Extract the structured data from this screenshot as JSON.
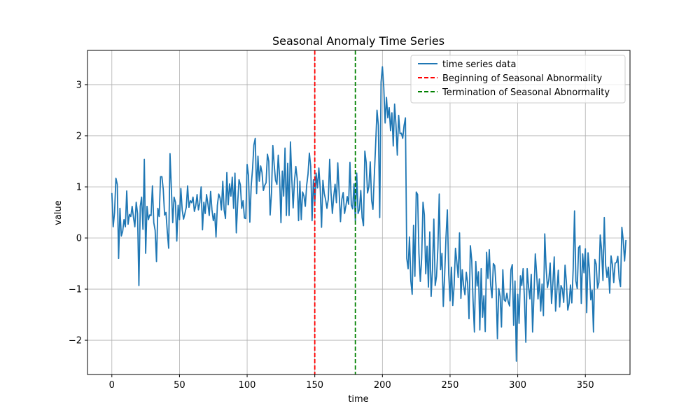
{
  "chart_data": {
    "type": "line",
    "title": "Seasonal Anomaly Time Series",
    "xlabel": "time",
    "ylabel": "value",
    "xlim": [
      -18,
      383
    ],
    "ylim": [
      -2.67,
      3.67
    ],
    "grid": true,
    "legend_position": "top-right",
    "x_ticks": [
      0,
      50,
      100,
      150,
      200,
      250,
      300,
      350
    ],
    "y_ticks": [
      -2,
      -1,
      0,
      1,
      2,
      3
    ],
    "series": [
      {
        "name": "time series data",
        "color": "#1f77b4",
        "x_start": 0,
        "x_step": 1,
        "values": [
          0.88,
          0.22,
          0.5,
          1.17,
          1.05,
          -0.4,
          0.58,
          0.04,
          0.13,
          0.36,
          0.22,
          0.92,
          0.27,
          0.46,
          0.42,
          0.62,
          0.4,
          0.22,
          0.7,
          0.48,
          -0.93,
          0.62,
          0.8,
          0.17,
          1.54,
          -0.3,
          0.62,
          0.36,
          0.45,
          0.44,
          1.02,
          0.3,
          0.15,
          -0.46,
          0.58,
          0.42,
          1.2,
          1.2,
          0.95,
          0.45,
          0.5,
          0.12,
          -0.2,
          1.65,
          0.96,
          0.3,
          0.8,
          0.7,
          -0.06,
          0.64,
          0.36,
          0.97,
          0.55,
          0.37,
          0.48,
          0.6,
          1.02,
          0.6,
          0.73,
          0.69,
          0.8,
          0.52,
          0.63,
          0.85,
          0.55,
          0.69,
          1.0,
          0.16,
          0.7,
          0.48,
          0.85,
          0.67,
          0.44,
          0.91,
          0.55,
          0.34,
          0.48,
          0.02,
          0.64,
          0.86,
          0.78,
          0.55,
          1.11,
          0.55,
          0.38,
          1.28,
          0.65,
          1.06,
          0.82,
          1.19,
          0.58,
          1.27,
          0.1,
          0.68,
          1.14,
          1.04,
          0.58,
          0.73,
          0.39,
          0.38,
          1.44,
          1.22,
          0.31,
          1.02,
          1.35,
          1.82,
          1.95,
          0.87,
          1.6,
          1.11,
          1.41,
          1.28,
          0.93,
          1.03,
          1.08,
          1.64,
          1.5,
          0.45,
          0.88,
          1.81,
          1.43,
          1.13,
          1.05,
          1.62,
          1.19,
          0.3,
          1.31,
          0.82,
          1.76,
          0.44,
          1.46,
          0.44,
          1.88,
          1.16,
          0.59,
          1.12,
          1.4,
          1.16,
          0.34,
          1.11,
          0.36,
          0.9,
          0.82,
          0.62,
          1.03,
          1.25,
          1.66,
          1.4,
          0.34,
          1.14,
          0.68,
          1.27,
          0.98,
          1.37,
          0.98,
          0.21,
          1.13,
          0.87,
          0.75,
          0.58,
          0.76,
          1.54,
          0.89,
          0.48,
          0.81,
          1.05,
          0.69,
          1.47,
          0.9,
          0.32,
          0.76,
          0.89,
          0.48,
          0.63,
          0.81,
          0.66,
          1.48,
          0.65,
          0.57,
          1.06,
          0.33,
          1.27,
          0.48,
          0.56,
          0.93,
          0.4,
          0.24,
          1.7,
          1.48,
          0.88,
          1.01,
          1.49,
          0.74,
          0.56,
          1.22,
          1.84,
          2.5,
          2.2,
          0.4,
          3.05,
          3.35,
          2.95,
          2.25,
          2.75,
          2.35,
          2.55,
          2.1,
          2.45,
          1.8,
          2.62,
          2.22,
          1.62,
          2.4,
          2.04,
          2.05,
          1.95,
          2.2,
          2.35,
          -0.4,
          -0.6,
          0.02,
          -0.84,
          -1.1,
          0.25,
          -0.75,
          0.9,
          0.85,
          -0.3,
          -0.85,
          -0.4,
          0.7,
          0.45,
          -0.7,
          -0.16,
          -0.96,
          0.12,
          -1.14,
          -0.62,
          0.37,
          -0.93,
          -0.75,
          -0.2,
          0.86,
          -0.62,
          -0.3,
          -1.34,
          -0.73,
          0.03,
          0.55,
          -0.7,
          -1.23,
          -0.57,
          -1.32,
          -0.93,
          -0.2,
          -0.47,
          -0.77,
          0.1,
          -1.18,
          -0.62,
          -0.93,
          -1.11,
          -0.67,
          -0.89,
          -1.58,
          -0.15,
          -0.43,
          -1.23,
          -1.84,
          -0.46,
          -0.94,
          -0.66,
          -1.8,
          -0.6,
          -1.55,
          -1.13,
          -1.83,
          -0.28,
          -0.79,
          -0.23,
          -0.92,
          -1.17,
          -0.5,
          -0.54,
          -0.95,
          -1.97,
          -0.99,
          -1.14,
          -1.74,
          -0.62,
          -1.21,
          -1.24,
          -1.08,
          -1.25,
          -1.33,
          -0.62,
          -0.52,
          -1.71,
          -0.84,
          -2.41,
          -1.1,
          -1.67,
          -0.74,
          -0.93,
          -0.6,
          -1.21,
          -2.04,
          -0.6,
          -0.95,
          -1.19,
          -0.71,
          -1.84,
          -1.12,
          -0.31,
          -0.7,
          -1.19,
          -0.8,
          -1.43,
          -0.9,
          -1.52,
          0.08,
          -0.59,
          -0.97,
          -0.82,
          -0.49,
          -1.28,
          -0.88,
          -0.37,
          -1.43,
          -1.01,
          -0.63,
          -1.35,
          -0.93,
          -1.0,
          -1.26,
          -0.53,
          -0.87,
          -1.41,
          -1.28,
          -0.92,
          -1.27,
          -0.61,
          0.53,
          -0.84,
          -0.99,
          -0.19,
          -0.15,
          -1.28,
          -0.31,
          -0.68,
          -0.21,
          -1.46,
          -0.29,
          -0.62,
          -1.21,
          -1.02,
          -1.84,
          -0.42,
          -0.51,
          -0.98,
          -0.87,
          0.06,
          -0.24,
          -0.83,
          0.4,
          -0.53,
          -0.77,
          -0.57,
          -1.08,
          -0.35,
          -0.52,
          -0.87,
          -0.49,
          -0.48,
          -0.36,
          -0.8,
          -0.95,
          0.21,
          -0.05,
          -0.45,
          -0.04
        ]
      }
    ],
    "vlines": [
      {
        "name": "Beginning of Seasonal Abnormality",
        "x": 150,
        "color": "#ff0000"
      },
      {
        "name": "Termination of Seasonal Abnormality",
        "x": 180,
        "color": "#008000"
      }
    ]
  }
}
